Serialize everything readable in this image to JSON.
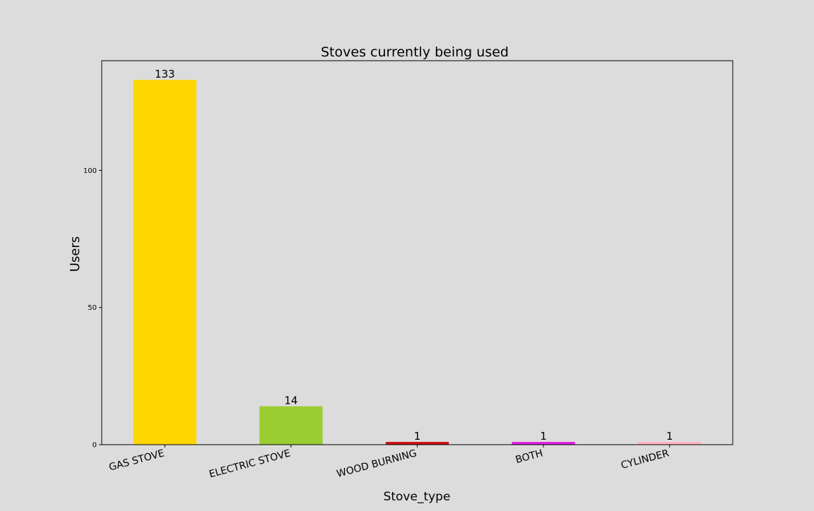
{
  "chart_data": {
    "type": "bar",
    "title": "Stoves currently being used",
    "xlabel": "Stove_type",
    "ylabel": "Users",
    "categories": [
      "GAS STOVE",
      "ELECTRIC STOVE",
      "WOOD BURNING",
      "BOTH",
      "CYLINDER"
    ],
    "values": [
      133,
      14,
      1,
      1,
      1
    ],
    "bar_colors": [
      "#ffd700",
      "#9acd32",
      "#cc1111",
      "#e020e0",
      "#ffb6c1"
    ],
    "ylim": [
      0,
      140
    ],
    "yticks": [
      0,
      50,
      100
    ],
    "grid": false,
    "legend": "none"
  },
  "colors": {
    "background": "#dcdcdc",
    "axis": "#000000",
    "text": "#000000"
  }
}
